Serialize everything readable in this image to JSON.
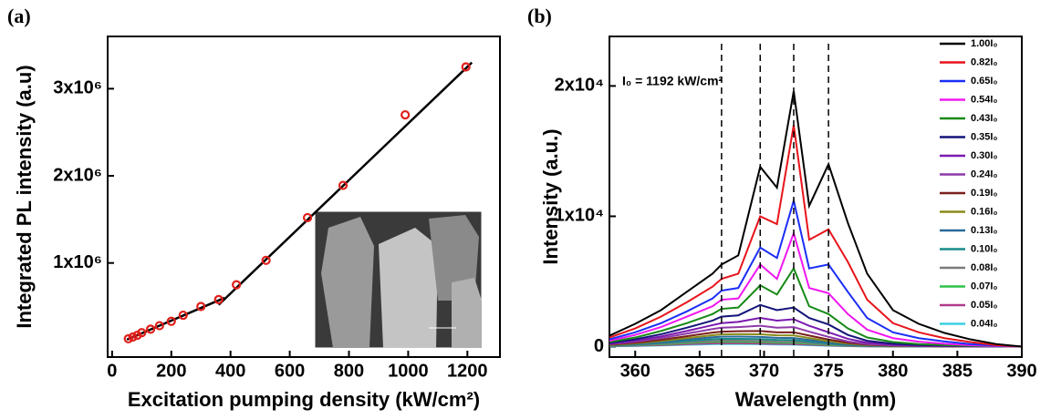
{
  "chart_data": [
    {
      "type": "scatter",
      "panel_label": "(a)",
      "x_label": "Excitation pumping density (kW/cm²)",
      "y_label": "Integrated PL intensity (a.u)",
      "xlim": [
        -15,
        1310
      ],
      "ylim": [
        -80000,
        3600000
      ],
      "xticks": [
        0,
        200,
        400,
        600,
        800,
        1000,
        1200
      ],
      "yticks": [
        {
          "value": 1000000,
          "label": "1x10⁶"
        },
        {
          "value": 2000000,
          "label": "2x10⁶"
        },
        {
          "value": 3000000,
          "label": "3x10⁶"
        }
      ],
      "series": [
        {
          "color": "#e0201b",
          "x": [
            55,
            70,
            85,
            100,
            130,
            160,
            200,
            240,
            300,
            360,
            420,
            520,
            660,
            780,
            990,
            1195
          ],
          "values": [
            130000,
            150000,
            170000,
            200000,
            240000,
            280000,
            330000,
            400000,
            500000,
            580000,
            750000,
            1030000,
            1520000,
            1890000,
            2700000,
            3250000
          ]
        }
      ],
      "fits": [
        {
          "color": "#000000",
          "x": [
            50,
            380
          ],
          "values": [
            120000,
            600000
          ]
        },
        {
          "color": "#000000",
          "x": [
            360,
            1215
          ],
          "values": [
            520000,
            3300000
          ]
        }
      ]
    },
    {
      "type": "line",
      "panel_label": "(b)",
      "x_label": "Wavelength (nm)",
      "y_label": "Intensity (a.u.)",
      "annotation": "I₀ = 1192 kW/cm²",
      "xlim": [
        358,
        390
      ],
      "ylim": [
        -800,
        23800
      ],
      "xticks": [
        360,
        365,
        370,
        375,
        380,
        385,
        390
      ],
      "yticks": [
        0,
        {
          "value": 10000,
          "label": "1x10⁴"
        },
        {
          "value": 20000,
          "label": "2x10⁴"
        }
      ],
      "reference_lines": [
        366.7,
        369.7,
        372.3,
        375
      ],
      "x": [
        358,
        360,
        362,
        364,
        366,
        366.7,
        368,
        369.7,
        371,
        372.3,
        373.5,
        375,
        376.5,
        378,
        380,
        382,
        384,
        386,
        388,
        390
      ],
      "series": [
        {
          "name": "1.00I₀",
          "color": "#000000",
          "values": [
            840,
            1750,
            2800,
            4200,
            5600,
            6300,
            7000,
            13800,
            12200,
            19600,
            10800,
            14000,
            9500,
            5600,
            2800,
            1750,
            1050,
            560,
            200,
            0
          ]
        },
        {
          "name": "0.82I₀",
          "color": "#e8141b",
          "values": [
            700,
            1400,
            2300,
            3400,
            4600,
            5200,
            5600,
            10000,
            9400,
            17000,
            8200,
            9000,
            6500,
            3600,
            1800,
            1100,
            650,
            350,
            120,
            0
          ]
        },
        {
          "name": "0.65I₀",
          "color": "#1a2ef5",
          "values": [
            560,
            1100,
            1800,
            2700,
            3700,
            4300,
            4500,
            7600,
            6800,
            11200,
            6000,
            6300,
            4200,
            2200,
            1100,
            650,
            400,
            200,
            80,
            0
          ]
        },
        {
          "name": "0.54I₀",
          "color": "#f018f0",
          "values": [
            450,
            900,
            1500,
            2300,
            3100,
            3600,
            3700,
            6300,
            5200,
            8700,
            4500,
            4100,
            2500,
            1300,
            650,
            380,
            220,
            110,
            40,
            0
          ]
        },
        {
          "name": "0.43I₀",
          "color": "#178a17",
          "values": [
            350,
            700,
            1200,
            1800,
            2500,
            2900,
            3000,
            4700,
            4000,
            6000,
            3100,
            2500,
            1400,
            700,
            350,
            200,
            120,
            60,
            20,
            0
          ]
        },
        {
          "name": "0.35I₀",
          "color": "#14147a",
          "values": [
            280,
            560,
            950,
            1450,
            2000,
            2300,
            2400,
            3200,
            2800,
            3000,
            2200,
            1700,
            900,
            450,
            220,
            130,
            80,
            40,
            15,
            0
          ]
        },
        {
          "name": "0.30I₀",
          "color": "#7a1ab0",
          "values": [
            230,
            460,
            780,
            1200,
            1650,
            1800,
            1900,
            2200,
            2000,
            2100,
            1600,
            1100,
            600,
            300,
            150,
            90,
            50,
            25,
            10,
            0
          ]
        },
        {
          "name": "0.24I₀",
          "color": "#8e3aa8",
          "values": [
            190,
            380,
            650,
            1000,
            1350,
            1450,
            1500,
            1600,
            1450,
            1500,
            1150,
            750,
            400,
            200,
            100,
            60,
            35,
            18,
            8,
            0
          ]
        },
        {
          "name": "0.19I₀",
          "color": "#7a1e1e",
          "values": [
            150,
            300,
            520,
            800,
            1080,
            1150,
            1180,
            1200,
            1100,
            1100,
            850,
            550,
            300,
            150,
            75,
            45,
            25,
            12,
            5,
            0
          ]
        },
        {
          "name": "0.16I₀",
          "color": "#8a8a1a",
          "values": [
            120,
            250,
            430,
            660,
            880,
            940,
            960,
            950,
            870,
            860,
            660,
            420,
            230,
            115,
            60,
            35,
            20,
            10,
            4,
            0
          ]
        },
        {
          "name": "0.13I₀",
          "color": "#2a6a9a",
          "values": [
            100,
            200,
            350,
            540,
            720,
            760,
            770,
            750,
            680,
            660,
            510,
            320,
            170,
            85,
            45,
            25,
            15,
            8,
            3,
            0
          ]
        },
        {
          "name": "0.10I₀",
          "color": "#1a8a8a",
          "values": [
            80,
            160,
            280,
            430,
            570,
            600,
            600,
            580,
            520,
            500,
            380,
            240,
            130,
            65,
            35,
            20,
            12,
            6,
            2,
            0
          ]
        },
        {
          "name": "0.08I₀",
          "color": "#7a7a7a",
          "values": [
            60,
            120,
            210,
            330,
            440,
            460,
            460,
            440,
            390,
            370,
            280,
            170,
            90,
            45,
            25,
            15,
            8,
            4,
            2,
            0
          ]
        },
        {
          "name": "0.07I₀",
          "color": "#2ec24a",
          "values": [
            50,
            100,
            170,
            270,
            360,
            370,
            370,
            350,
            310,
            290,
            220,
            130,
            70,
            35,
            20,
            12,
            6,
            3,
            1,
            0
          ]
        },
        {
          "name": "0.05I₀",
          "color": "#b03a8a",
          "values": [
            35,
            70,
            120,
            190,
            250,
            260,
            260,
            240,
            210,
            200,
            150,
            90,
            50,
            25,
            14,
            8,
            4,
            2,
            1,
            0
          ]
        },
        {
          "name": "0.04I₀",
          "color": "#3ad0e0",
          "values": [
            25,
            50,
            90,
            140,
            190,
            200,
            200,
            185,
            160,
            150,
            110,
            65,
            35,
            18,
            10,
            6,
            3,
            2,
            1,
            0
          ]
        }
      ]
    }
  ]
}
